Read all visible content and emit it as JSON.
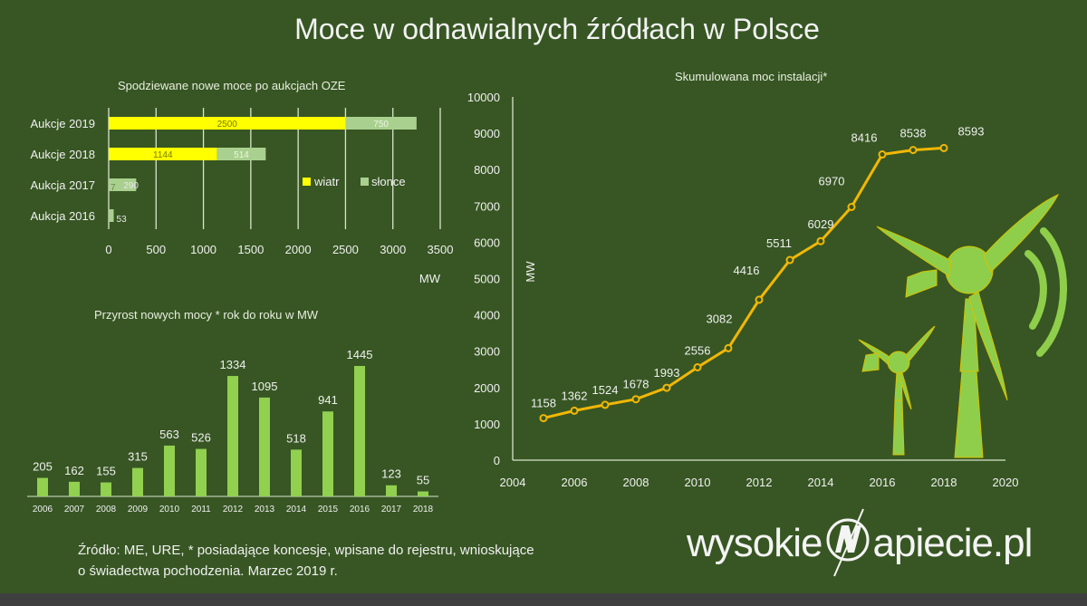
{
  "title": "Moce w odnawialnych źródłach w Polsce",
  "colors": {
    "background": "#375623",
    "wind": "#ffff00",
    "solar": "#a9d08e",
    "bar_green": "#92d050",
    "line": "#f2b705",
    "gridline": "#d9e4cc"
  },
  "chart_data": [
    {
      "type": "bar",
      "orientation": "horizontal",
      "stacked": true,
      "title": "Spodziewane nowe moce po aukcjach OZE",
      "categories": [
        "Aukcje 2019",
        "Aukcje 2018",
        "Aukcja 2017",
        "Aukcja 2016"
      ],
      "series": [
        {
          "name": "wiatr",
          "values": [
            2500,
            1144,
            0,
            0
          ]
        },
        {
          "name": "słonce",
          "values": [
            750,
            514,
            290,
            53
          ]
        }
      ],
      "extra_labels": {
        "Aukcja 2017": "7"
      },
      "xlabel": "MW",
      "xticks": [
        0,
        500,
        1000,
        1500,
        2000,
        2500,
        3000,
        3500
      ],
      "xlim": [
        0,
        3500
      ],
      "grid": true,
      "legend_position": "inside-right"
    },
    {
      "type": "bar",
      "title": "Przyrost nowych mocy * rok do roku w MW",
      "categories": [
        "2006",
        "2007",
        "2008",
        "2009",
        "2010",
        "2011",
        "2012",
        "2013",
        "2014",
        "2015",
        "2016",
        "2017",
        "2018"
      ],
      "values": [
        205,
        162,
        155,
        315,
        563,
        526,
        1334,
        1095,
        518,
        941,
        1445,
        123,
        55
      ],
      "xlabel": "",
      "ylabel": "MW",
      "grid": false
    },
    {
      "type": "line",
      "title": "Skumulowana moc  instalacji*",
      "x": [
        2005,
        2006,
        2007,
        2008,
        2009,
        2010,
        2011,
        2012,
        2013,
        2014,
        2015,
        2016,
        2017,
        2018
      ],
      "values": [
        1158,
        1362,
        1524,
        1678,
        1993,
        2556,
        3082,
        4416,
        5511,
        6029,
        6970,
        8416,
        8538,
        8593
      ],
      "xlabel": "",
      "ylabel": "MW",
      "xticks": [
        2004,
        2006,
        2008,
        2010,
        2012,
        2014,
        2016,
        2018,
        2020
      ],
      "yticks": [
        0,
        1000,
        2000,
        3000,
        4000,
        5000,
        6000,
        7000,
        8000,
        9000,
        10000
      ],
      "xlim": [
        2004,
        2020
      ],
      "ylim": [
        0,
        10000
      ],
      "grid": false
    }
  ],
  "footnote": {
    "line1": "Źródło: ME, URE, * posiadające koncesje, wpisane do rejestru, wnioskujące",
    "line2": "o świadectwa pochodzenia. Marzec 2019 r."
  },
  "logo": {
    "left": "wysokie",
    "right": "apiecie.pl"
  }
}
